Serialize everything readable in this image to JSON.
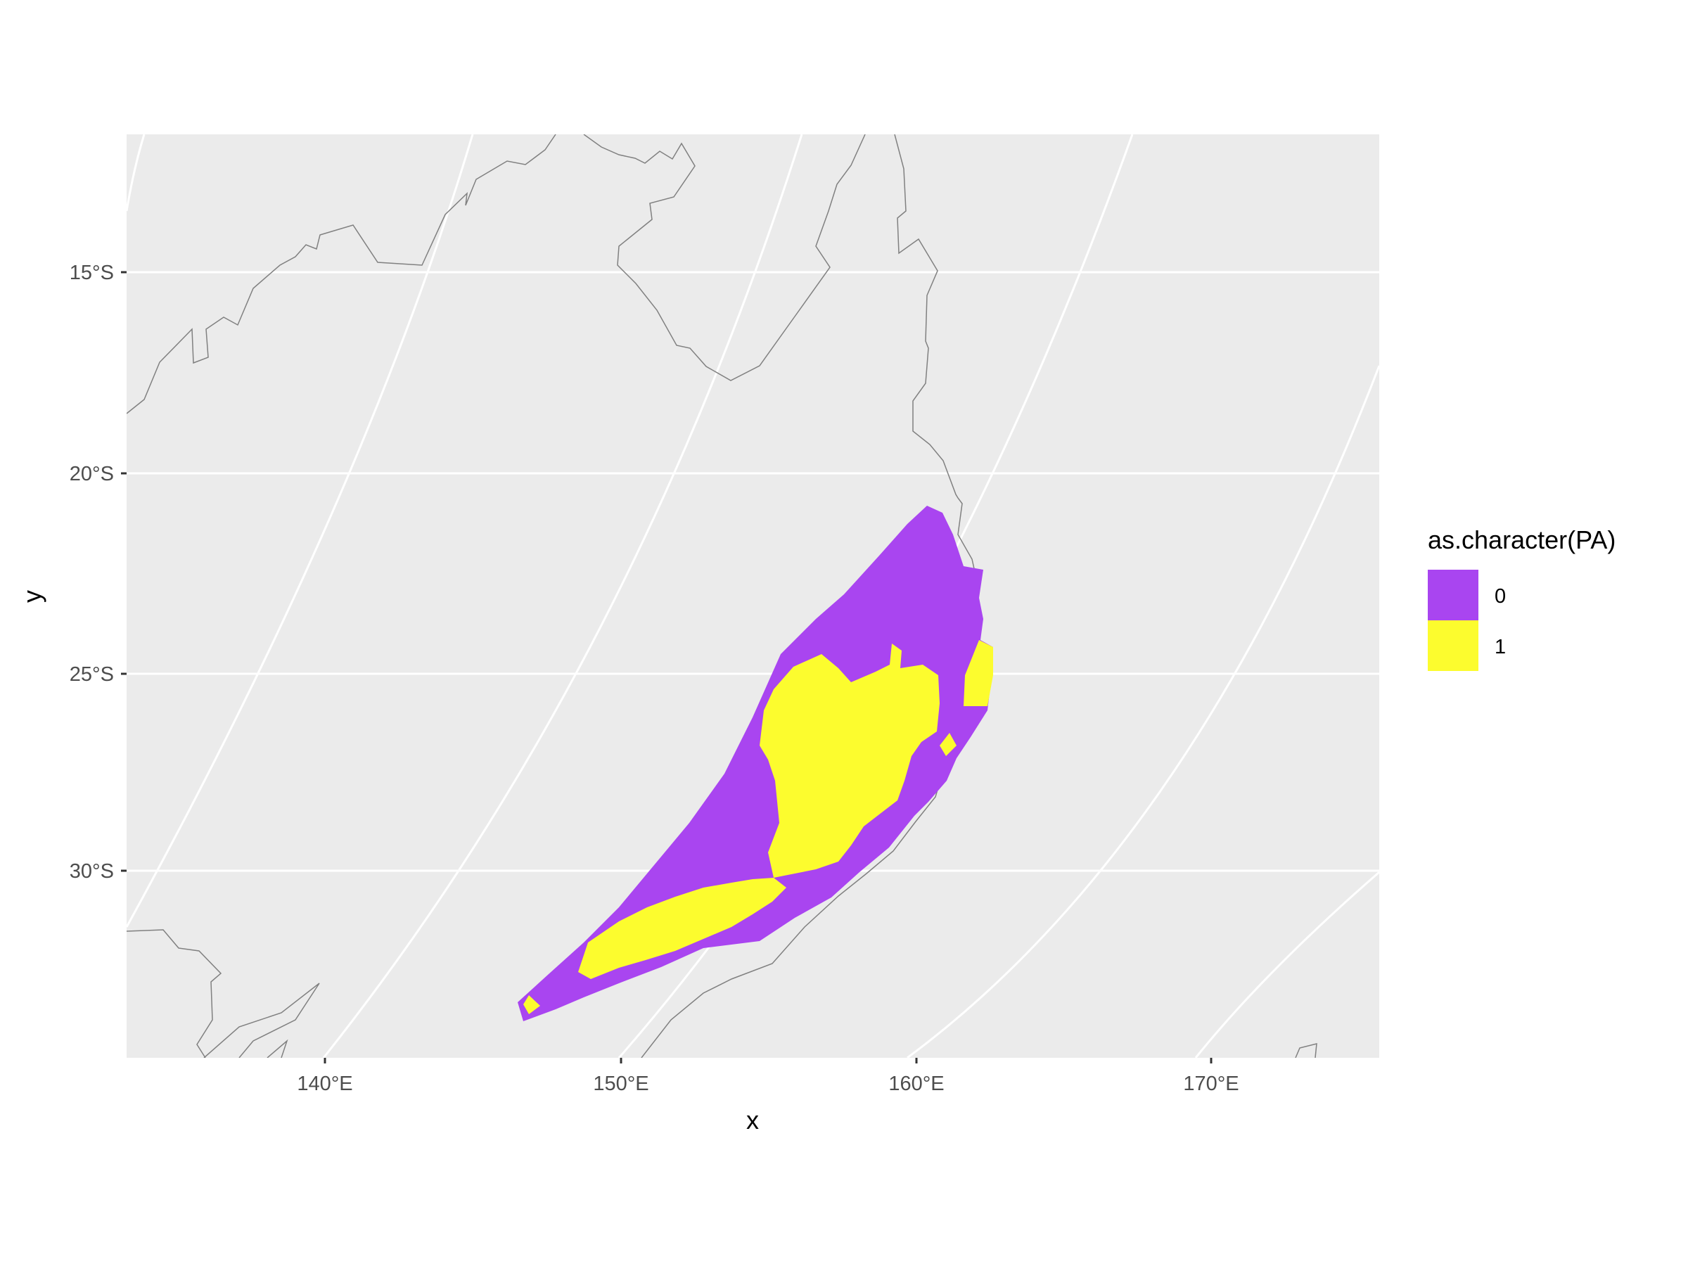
{
  "chart_data": {
    "type": "heatmap",
    "title": "",
    "xlabel": "x",
    "ylabel": "y",
    "x_ticks": [
      "140°E",
      "150°E",
      "160°E",
      "170°E"
    ],
    "y_ticks": [
      "15°S",
      "20°S",
      "25°S",
      "30°S"
    ],
    "x_tick_values": [
      140,
      150,
      160,
      170
    ],
    "y_tick_values": [
      -15,
      -20,
      -25,
      -30
    ],
    "grid": true,
    "legend": {
      "title": "as.character(PA)",
      "placement": "right",
      "entries": [
        {
          "label": "0",
          "color": "#A945F0"
        },
        {
          "label": "1",
          "color": "#FCFC2E"
        }
      ]
    },
    "categories": [
      "0",
      "1"
    ],
    "description_values": {
      "0": "absence cells covering elongated region approx. 147°E–162°E, 21°S–34°S",
      "1": "presence cells concentrated approx. 149°E–162°E, 24.5°S–33°S"
    }
  },
  "colors": {
    "panel_background": "#EBEBEB",
    "grid_line": "#FFFFFF",
    "coastline": "#808080",
    "absence": "#A945F0",
    "presence": "#FCFC2E"
  }
}
